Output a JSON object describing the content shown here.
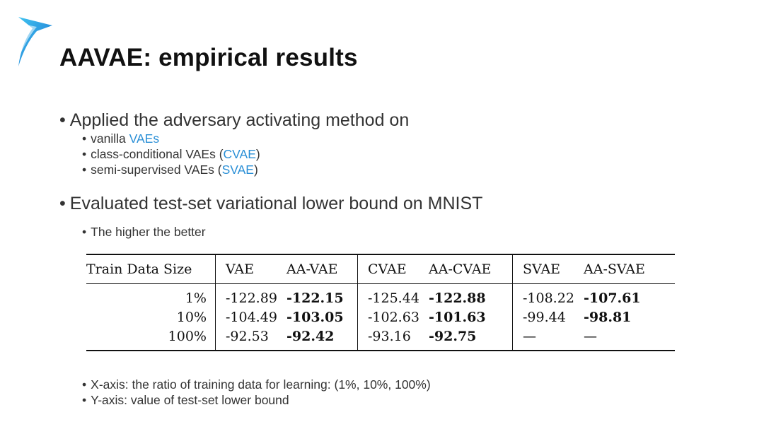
{
  "title": "AAVAE: empirical results",
  "bullets": {
    "b1": "Applied the adversary activating method on",
    "sub1": [
      {
        "prefix": "vanilla ",
        "link": "VAEs",
        "suffix": ""
      },
      {
        "prefix": "class-conditional VAEs (",
        "link": "CVAE",
        "suffix": ")"
      },
      {
        "prefix": "semi-supervised VAEs (",
        "link": "SVAE",
        "suffix": ")"
      }
    ],
    "b2": "Evaluated test-set variational lower bound on MNIST",
    "sub2": "The higher the better",
    "notes": [
      "X-axis: the ratio of training data for learning: (1%, 10%, 100%)",
      "Y-axis: value of test-set lower bound"
    ]
  },
  "table": {
    "headers": [
      "Train Data Size",
      "VAE",
      "AA-VAE",
      "CVAE",
      "AA-CVAE",
      "SVAE",
      "AA-SVAE"
    ],
    "rows": [
      [
        "1%",
        "-122.89",
        "-122.15",
        "-125.44",
        "-122.88",
        "-108.22",
        "-107.61"
      ],
      [
        "10%",
        "-104.49",
        "-103.05",
        "-102.63",
        "-101.63",
        "-99.44",
        "-98.81"
      ],
      [
        "100%",
        "-92.53",
        "-92.42",
        "-93.16",
        "-92.75",
        "—",
        "—"
      ]
    ]
  },
  "colors": {
    "link": "#2a8fd6",
    "logo": "#1e9be0"
  },
  "icons": {
    "logo": "blue-arrow-logo-icon"
  }
}
